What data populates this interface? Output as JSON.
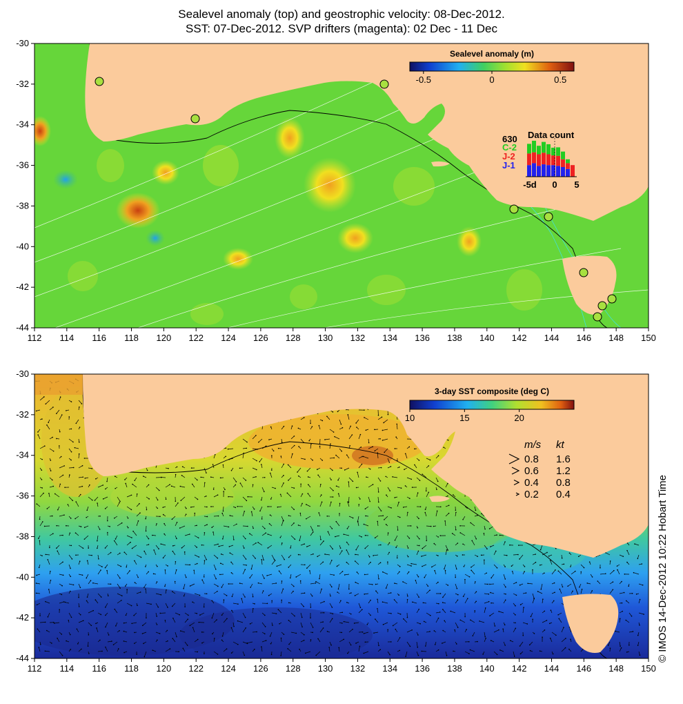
{
  "title": {
    "line1": "Sealevel anomaly (top) and geostrophic velocity: 08-Dec-2012.",
    "line2": "SST: 07-Dec-2012. SVP drifters (magenta): 02 Dec - 11 Dec"
  },
  "axes": {
    "lon_ticks": [
      "112",
      "114",
      "116",
      "118",
      "120",
      "122",
      "124",
      "126",
      "128",
      "130",
      "132",
      "134",
      "136",
      "138",
      "140",
      "142",
      "144",
      "146",
      "148",
      "150"
    ],
    "lat_ticks": [
      "-30",
      "-32",
      "-34",
      "-36",
      "-38",
      "-40",
      "-42",
      "-44"
    ]
  },
  "sla_panel": {
    "colorbar_title": "Sealevel anomaly (m)",
    "colorbar_ticks": [
      "-0.5",
      "0",
      "0.5"
    ],
    "colorbar_range": [
      -0.6,
      0.6
    ],
    "data_count": {
      "title": "Data count",
      "max_label": "630",
      "satellites": [
        {
          "name": "C-2",
          "color": "#22cc22"
        },
        {
          "name": "J-2",
          "color": "#ee2222"
        },
        {
          "name": "J-1",
          "color": "#2222ee"
        }
      ],
      "x_labels": [
        "-5d",
        "0",
        "5"
      ],
      "bars": [
        {
          "j1": 0.3,
          "j2": 0.3,
          "c2": 0.25
        },
        {
          "j1": 0.35,
          "j2": 0.28,
          "c2": 0.3
        },
        {
          "j1": 0.28,
          "j2": 0.3,
          "c2": 0.22
        },
        {
          "j1": 0.32,
          "j2": 0.3,
          "c2": 0.28
        },
        {
          "j1": 0.3,
          "j2": 0.28,
          "c2": 0.26
        },
        {
          "j1": 0.3,
          "j2": 0.25,
          "c2": 0.2
        },
        {
          "j1": 0.28,
          "j2": 0.26,
          "c2": 0.22
        },
        {
          "j1": 0.25,
          "j2": 0.2,
          "c2": 0.2
        },
        {
          "j1": 0.2,
          "j2": 0.15,
          "c2": 0.1
        },
        {
          "j1": 0.0,
          "j2": 0.3,
          "c2": 0.0
        }
      ]
    }
  },
  "sst_panel": {
    "colorbar_title": "3-day SST composite (deg C)",
    "colorbar_ticks": [
      "10",
      "15",
      "20"
    ],
    "colorbar_range": [
      10,
      25
    ],
    "velocity_legend": {
      "header_ms": "m/s",
      "header_kt": "kt",
      "rows": [
        {
          "ms": "0.8",
          "kt": "1.6"
        },
        {
          "ms": "0.6",
          "kt": "1.2"
        },
        {
          "ms": "0.4",
          "kt": "0.8"
        },
        {
          "ms": "0.2",
          "kt": "0.4"
        }
      ]
    }
  },
  "credit": "© IMOS 14-Dec-2012 10:22 Hobart Time",
  "colors": {
    "land": "#fbcb9c",
    "sla_ocean": "#66d63a",
    "sst_warm": "#f2b52a",
    "sst_mid": "#b8e23a",
    "sst_cool": "#3aa8ee",
    "sst_cold": "#1a3ac8"
  }
}
